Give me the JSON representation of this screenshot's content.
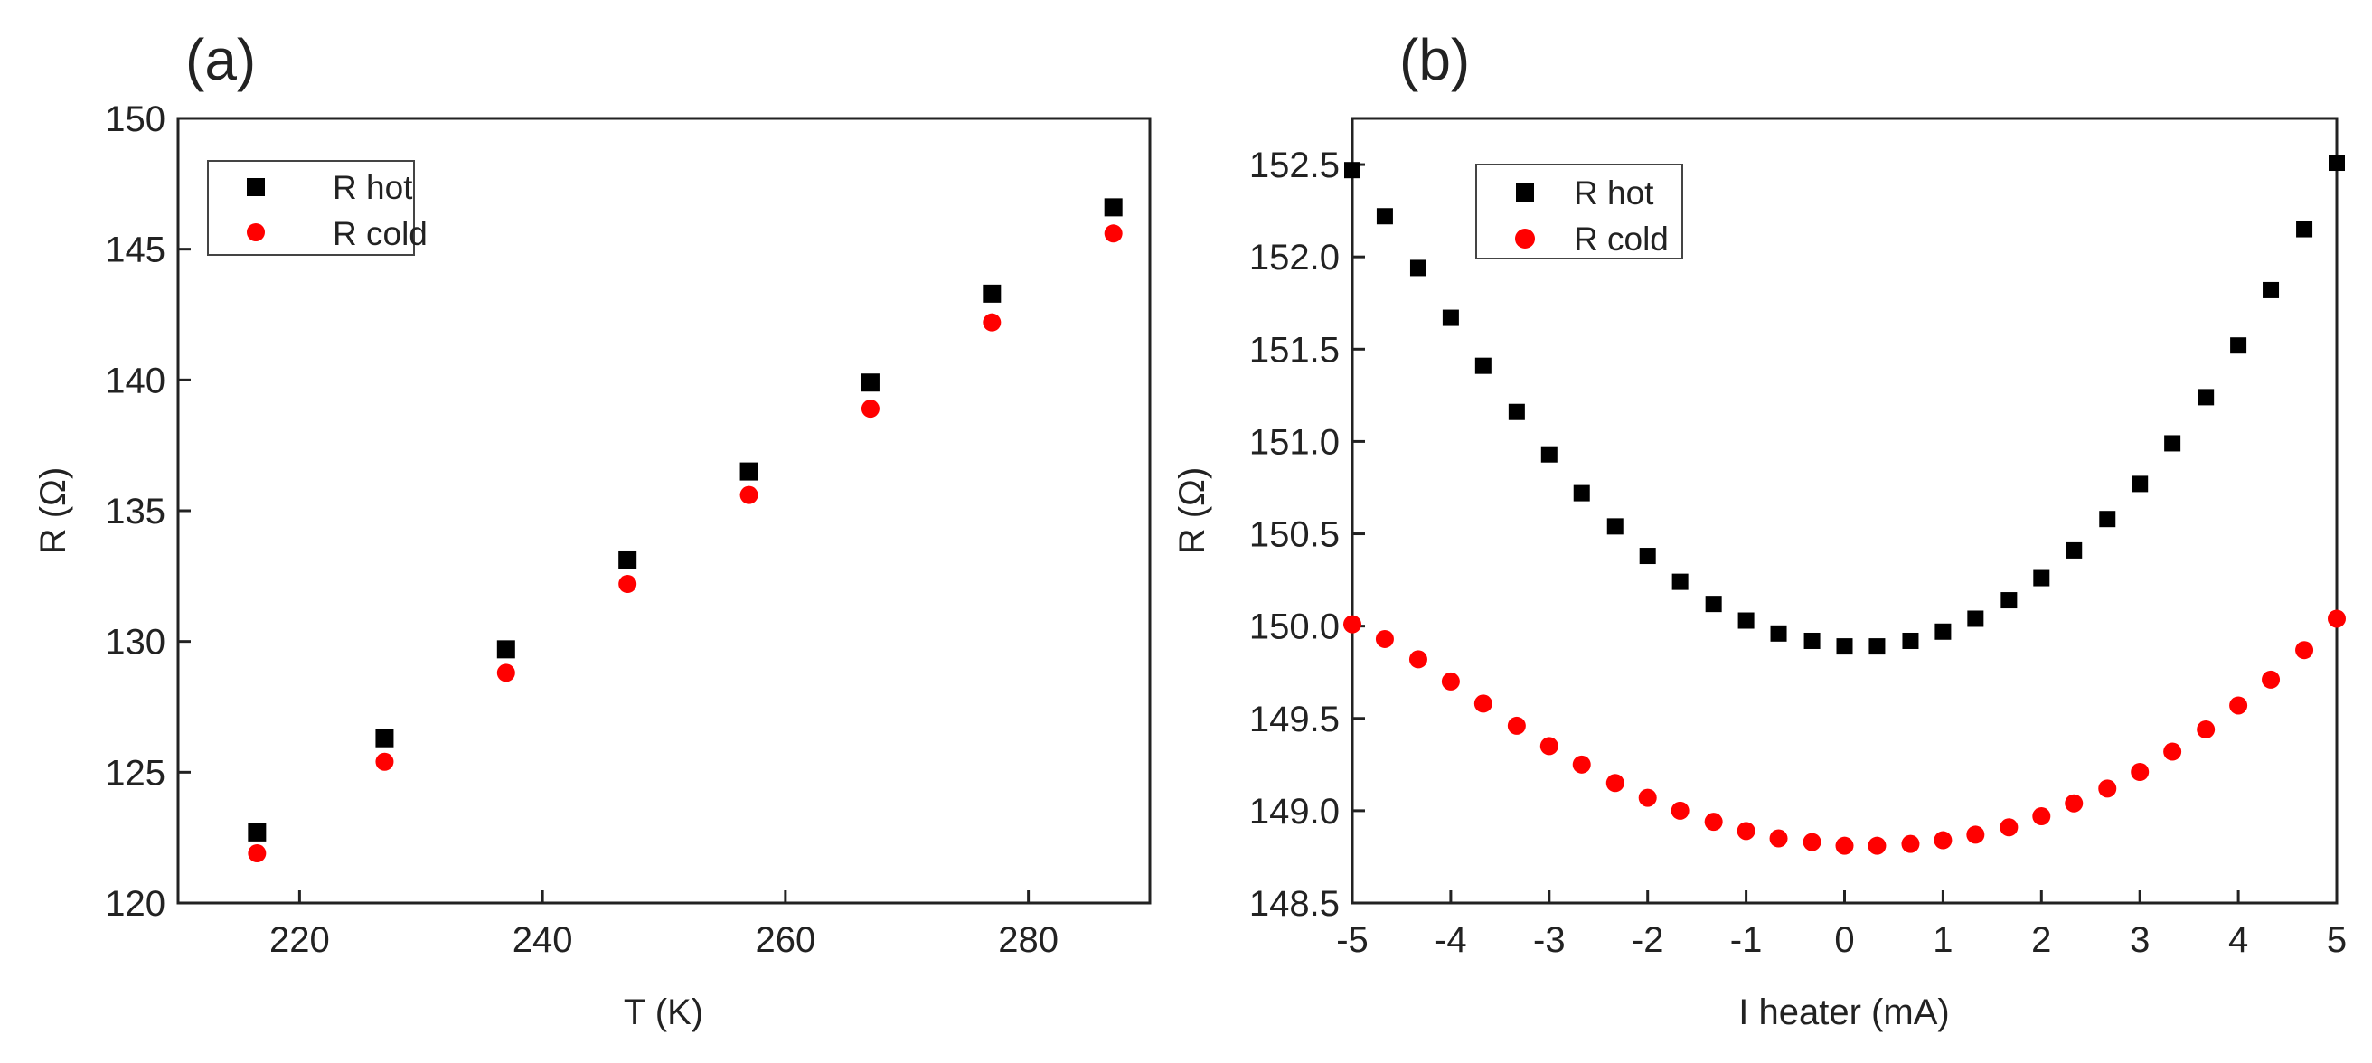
{
  "chart_data": [
    {
      "type": "scatter",
      "panel_label": "(a)",
      "xlabel": "T (K)",
      "ylabel": "R (Ω)",
      "xlim": [
        210,
        290
      ],
      "ylim": [
        120,
        150
      ],
      "xticks": [
        220,
        240,
        260,
        280
      ],
      "yticks": [
        120,
        125,
        130,
        135,
        140,
        145,
        150
      ],
      "legend_position": "top-left",
      "series": [
        {
          "name": "R hot",
          "marker": "square",
          "color": "#000000",
          "x": [
            216.5,
            227,
            237,
            247,
            257,
            267,
            277,
            287
          ],
          "y": [
            122.7,
            126.3,
            129.7,
            133.1,
            136.5,
            139.9,
            143.3,
            146.6
          ]
        },
        {
          "name": "R cold",
          "marker": "circle",
          "color": "#ff0000",
          "x": [
            216.5,
            227,
            237,
            247,
            257,
            267,
            277,
            287
          ],
          "y": [
            121.9,
            125.4,
            128.8,
            132.2,
            135.6,
            138.9,
            142.2,
            145.6
          ]
        }
      ]
    },
    {
      "type": "scatter",
      "panel_label": "(b)",
      "xlabel": "I heater (mA)",
      "ylabel": "R (Ω)",
      "xlim": [
        -5,
        5
      ],
      "ylim": [
        148.5,
        152.75
      ],
      "xticks": [
        -5,
        -4,
        -3,
        -2,
        -1,
        0,
        1,
        2,
        3,
        4,
        5
      ],
      "yticks": [
        148.5,
        149.0,
        149.5,
        150.0,
        150.5,
        151.0,
        151.5,
        152.0,
        152.5
      ],
      "ytick_labels": [
        "148.5",
        "149.0",
        "149.5",
        "150.0",
        "150.5",
        "151.0",
        "151.5",
        "152.0",
        "152.5"
      ],
      "legend_position": "top-left",
      "series": [
        {
          "name": "R hot",
          "marker": "square",
          "color": "#000000",
          "x": [
            -5,
            -4.67,
            -4.33,
            -4,
            -3.67,
            -3.33,
            -3,
            -2.67,
            -2.33,
            -2,
            -1.67,
            -1.33,
            -1,
            -0.67,
            -0.33,
            0,
            0.33,
            0.67,
            1,
            1.33,
            1.67,
            2,
            2.33,
            2.67,
            3,
            3.33,
            3.67,
            4,
            4.33,
            4.67,
            5
          ],
          "y": [
            152.47,
            152.22,
            151.94,
            151.67,
            151.41,
            151.16,
            150.93,
            150.72,
            150.54,
            150.38,
            150.24,
            150.12,
            150.03,
            149.96,
            149.92,
            149.89,
            149.89,
            149.92,
            149.97,
            150.04,
            150.14,
            150.26,
            150.41,
            150.58,
            150.77,
            150.99,
            151.24,
            151.52,
            151.82,
            152.15,
            152.51
          ]
        },
        {
          "name": "R cold",
          "marker": "circle",
          "color": "#ff0000",
          "x": [
            -5,
            -4.67,
            -4.33,
            -4,
            -3.67,
            -3.33,
            -3,
            -2.67,
            -2.33,
            -2,
            -1.67,
            -1.33,
            -1,
            -0.67,
            -0.33,
            0,
            0.33,
            0.67,
            1,
            1.33,
            1.67,
            2,
            2.33,
            2.67,
            3,
            3.33,
            3.67,
            4,
            4.33,
            4.67,
            5
          ],
          "y": [
            150.01,
            149.93,
            149.82,
            149.7,
            149.58,
            149.46,
            149.35,
            149.25,
            149.15,
            149.07,
            149.0,
            148.94,
            148.89,
            148.85,
            148.83,
            148.81,
            148.81,
            148.82,
            148.84,
            148.87,
            148.91,
            148.97,
            149.04,
            149.12,
            149.21,
            149.32,
            149.44,
            149.57,
            149.71,
            149.87,
            150.04
          ]
        }
      ]
    }
  ]
}
